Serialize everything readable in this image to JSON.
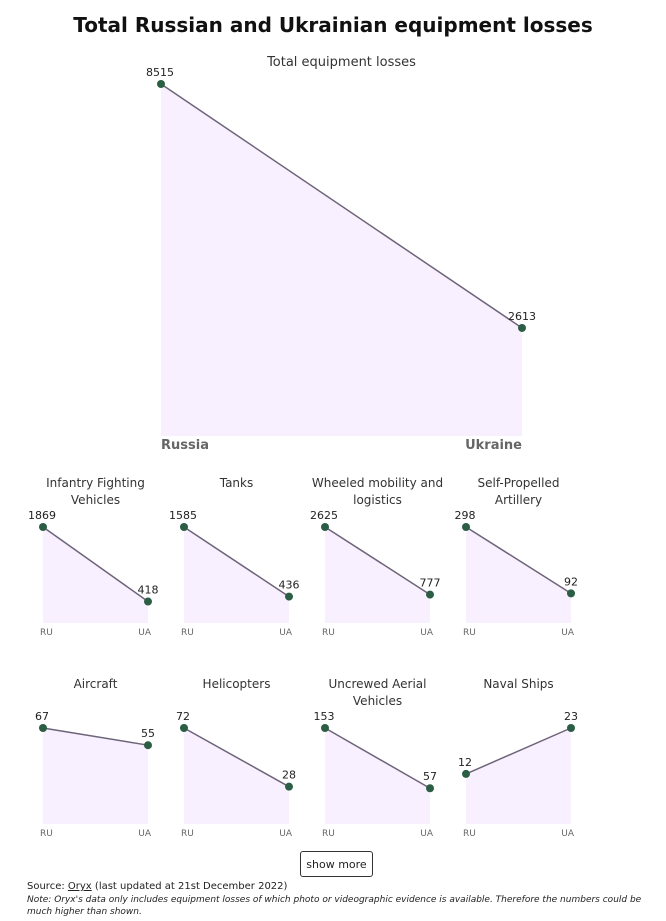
{
  "title": "Total Russian and Ukrainian equipment losses",
  "colors": {
    "fill": "#f8efff",
    "line": "#6e6479",
    "dot": "#2b5e44",
    "label": "#666666"
  },
  "show_more_label": "show more",
  "footer": {
    "source_prefix": "Source: ",
    "source_link": "Oryx",
    "source_suffix": " (last updated at 21st December 2022)",
    "note": "Note: Oryx's data only includes equipment losses of which photo or videographic evidence is available. Therefore the numbers could be much higher than shown."
  },
  "chart_data": [
    {
      "type": "area",
      "title": "Total equipment losses",
      "categories": [
        "Russia",
        "Ukraine"
      ],
      "values": [
        8515,
        2613
      ]
    },
    {
      "type": "area",
      "title": "Infantry Fighting Vehicles",
      "categories": [
        "RU",
        "UA"
      ],
      "values": [
        1869,
        418
      ]
    },
    {
      "type": "area",
      "title": "Tanks",
      "categories": [
        "RU",
        "UA"
      ],
      "values": [
        1585,
        436
      ]
    },
    {
      "type": "area",
      "title": "Wheeled mobility and logistics",
      "categories": [
        "RU",
        "UA"
      ],
      "values": [
        2625,
        777
      ]
    },
    {
      "type": "area",
      "title": "Self-Propelled Artillery",
      "categories": [
        "RU",
        "UA"
      ],
      "values": [
        298,
        92
      ]
    },
    {
      "type": "area",
      "title": "Aircraft",
      "categories": [
        "RU",
        "UA"
      ],
      "values": [
        67,
        55
      ]
    },
    {
      "type": "area",
      "title": "Helicopters",
      "categories": [
        "RU",
        "UA"
      ],
      "values": [
        72,
        28
      ]
    },
    {
      "type": "area",
      "title": "Uncrewed Aerial Vehicles",
      "categories": [
        "RU",
        "UA"
      ],
      "values": [
        153,
        57
      ]
    },
    {
      "type": "area",
      "title": "Naval Ships",
      "categories": [
        "RU",
        "UA"
      ],
      "values": [
        12,
        23
      ]
    }
  ]
}
